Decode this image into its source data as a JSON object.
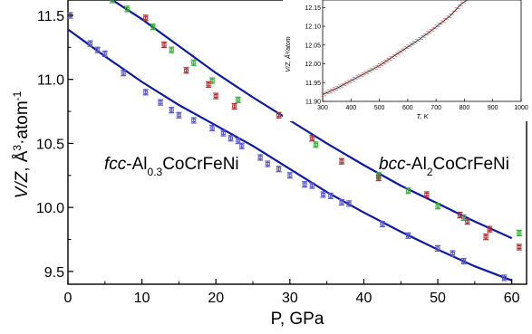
{
  "chart_data": [
    {
      "type": "scatter",
      "xlabel": "P, GPa",
      "ylabel_main": "V/Z",
      "ylabel_unit": ", Å",
      "ylabel_sup": "3",
      "ylabel_rest": "·atom",
      "ylabel_sup2": "-1",
      "xlim": [
        0,
        62
      ],
      "ylim": [
        9.4,
        11.62
      ],
      "xticks": [
        "0",
        "10",
        "20",
        "30",
        "40",
        "50",
        "60"
      ],
      "yticks": [
        "9.5",
        "10.0",
        "10.5",
        "11.0",
        "11.5"
      ],
      "annotations": [
        {
          "italic": "fcc",
          "text": "-Al",
          "sub": "0.3",
          "rest": "CoCrFeNi"
        },
        {
          "italic": "bcc",
          "text": "-Al",
          "sub": "2",
          "rest": "CoCrFeNi"
        }
      ],
      "colors": {
        "fit": "#0a1aa8",
        "fcc": "#5a55c8",
        "bcc_green": "#3aa83a",
        "bcc_red": "#a83030"
      },
      "series": [
        {
          "marker": "fcc",
          "points": [
            [
              0.3,
              11.5
            ],
            [
              3,
              11.28
            ],
            [
              4,
              11.23
            ],
            [
              5,
              11.2
            ],
            [
              7.5,
              11.05
            ],
            [
              10.5,
              10.9
            ],
            [
              12.5,
              10.82
            ],
            [
              14,
              10.76
            ],
            [
              15,
              10.72
            ],
            [
              17,
              10.68
            ],
            [
              19.5,
              10.62
            ],
            [
              21,
              10.58
            ],
            [
              22,
              10.54
            ],
            [
              23,
              10.52
            ],
            [
              23.5,
              10.48
            ],
            [
              26,
              10.39
            ],
            [
              27,
              10.34
            ],
            [
              28.5,
              10.3
            ],
            [
              30,
              10.25
            ],
            [
              32,
              10.18
            ],
            [
              33,
              10.17
            ],
            [
              34.5,
              10.1
            ],
            [
              35.5,
              10.09
            ],
            [
              37,
              10.04
            ],
            [
              38,
              10.03
            ],
            [
              42.5,
              9.87
            ],
            [
              46,
              9.78
            ],
            [
              50,
              9.68
            ],
            [
              52,
              9.64
            ],
            [
              53.5,
              9.58
            ],
            [
              59,
              9.45
            ]
          ]
        },
        {
          "marker": "bcc_green",
          "points": [
            [
              6,
              11.62
            ],
            [
              8,
              11.55
            ],
            [
              11.5,
              11.41
            ],
            [
              14,
              11.23
            ],
            [
              17,
              11.13
            ],
            [
              19.5,
              10.99
            ],
            [
              23,
              10.84
            ],
            [
              33.5,
              10.49
            ],
            [
              42,
              10.25
            ],
            [
              46,
              10.13
            ],
            [
              50,
              10.01
            ],
            [
              53.5,
              9.92
            ],
            [
              61,
              9.8
            ]
          ]
        },
        {
          "marker": "bcc_red",
          "points": [
            [
              10.5,
              11.48
            ],
            [
              13,
              11.27
            ],
            [
              16,
              11.07
            ],
            [
              19,
              10.96
            ],
            [
              20,
              10.87
            ],
            [
              22.5,
              10.79
            ],
            [
              28.5,
              10.72
            ],
            [
              33,
              10.54
            ],
            [
              37,
              10.36
            ],
            [
              42,
              10.23
            ],
            [
              48.5,
              10.1
            ],
            [
              53,
              9.94
            ],
            [
              54,
              9.89
            ],
            [
              56.5,
              9.77
            ],
            [
              57,
              9.83
            ],
            [
              61,
              9.69
            ]
          ]
        }
      ],
      "fits": [
        {
          "name_ref": "fcc",
          "points": [
            [
              0,
              11.39
            ],
            [
              5,
              11.18
            ],
            [
              10,
              10.98
            ],
            [
              15,
              10.8
            ],
            [
              20,
              10.64
            ],
            [
              25,
              10.48
            ],
            [
              30,
              10.3
            ],
            [
              35,
              10.12
            ],
            [
              40,
              9.96
            ],
            [
              45,
              9.81
            ],
            [
              50,
              9.67
            ],
            [
              55,
              9.54
            ],
            [
              60,
              9.43
            ]
          ]
        },
        {
          "name_ref": "bcc",
          "points": [
            [
              6,
              11.62
            ],
            [
              10,
              11.47
            ],
            [
              15,
              11.26
            ],
            [
              20,
              11.05
            ],
            [
              25,
              10.86
            ],
            [
              30,
              10.68
            ],
            [
              35,
              10.5
            ],
            [
              40,
              10.33
            ],
            [
              45,
              10.17
            ],
            [
              50,
              10.03
            ],
            [
              55,
              9.89
            ],
            [
              60,
              9.76
            ]
          ]
        }
      ]
    },
    {
      "type": "line",
      "inset": true,
      "xlabel": "T, K",
      "ylabel": "V/Z, Å³/atom",
      "xlim": [
        300,
        1000
      ],
      "ylim": [
        11.9,
        12.17
      ],
      "xticks": [
        "300",
        "400",
        "500",
        "600",
        "700",
        "800",
        "900",
        "1000"
      ],
      "yticks": [
        "11.90",
        "11.95",
        "12.00",
        "12.05",
        "12.10",
        "12.15"
      ],
      "points": [
        [
          300,
          11.918
        ],
        [
          350,
          11.935
        ],
        [
          400,
          11.955
        ],
        [
          450,
          11.975
        ],
        [
          500,
          11.995
        ],
        [
          550,
          12.02
        ],
        [
          600,
          12.045
        ],
        [
          650,
          12.07
        ],
        [
          700,
          12.098
        ],
        [
          750,
          12.128
        ],
        [
          790,
          12.16
        ],
        [
          810,
          12.175
        ]
      ]
    }
  ]
}
